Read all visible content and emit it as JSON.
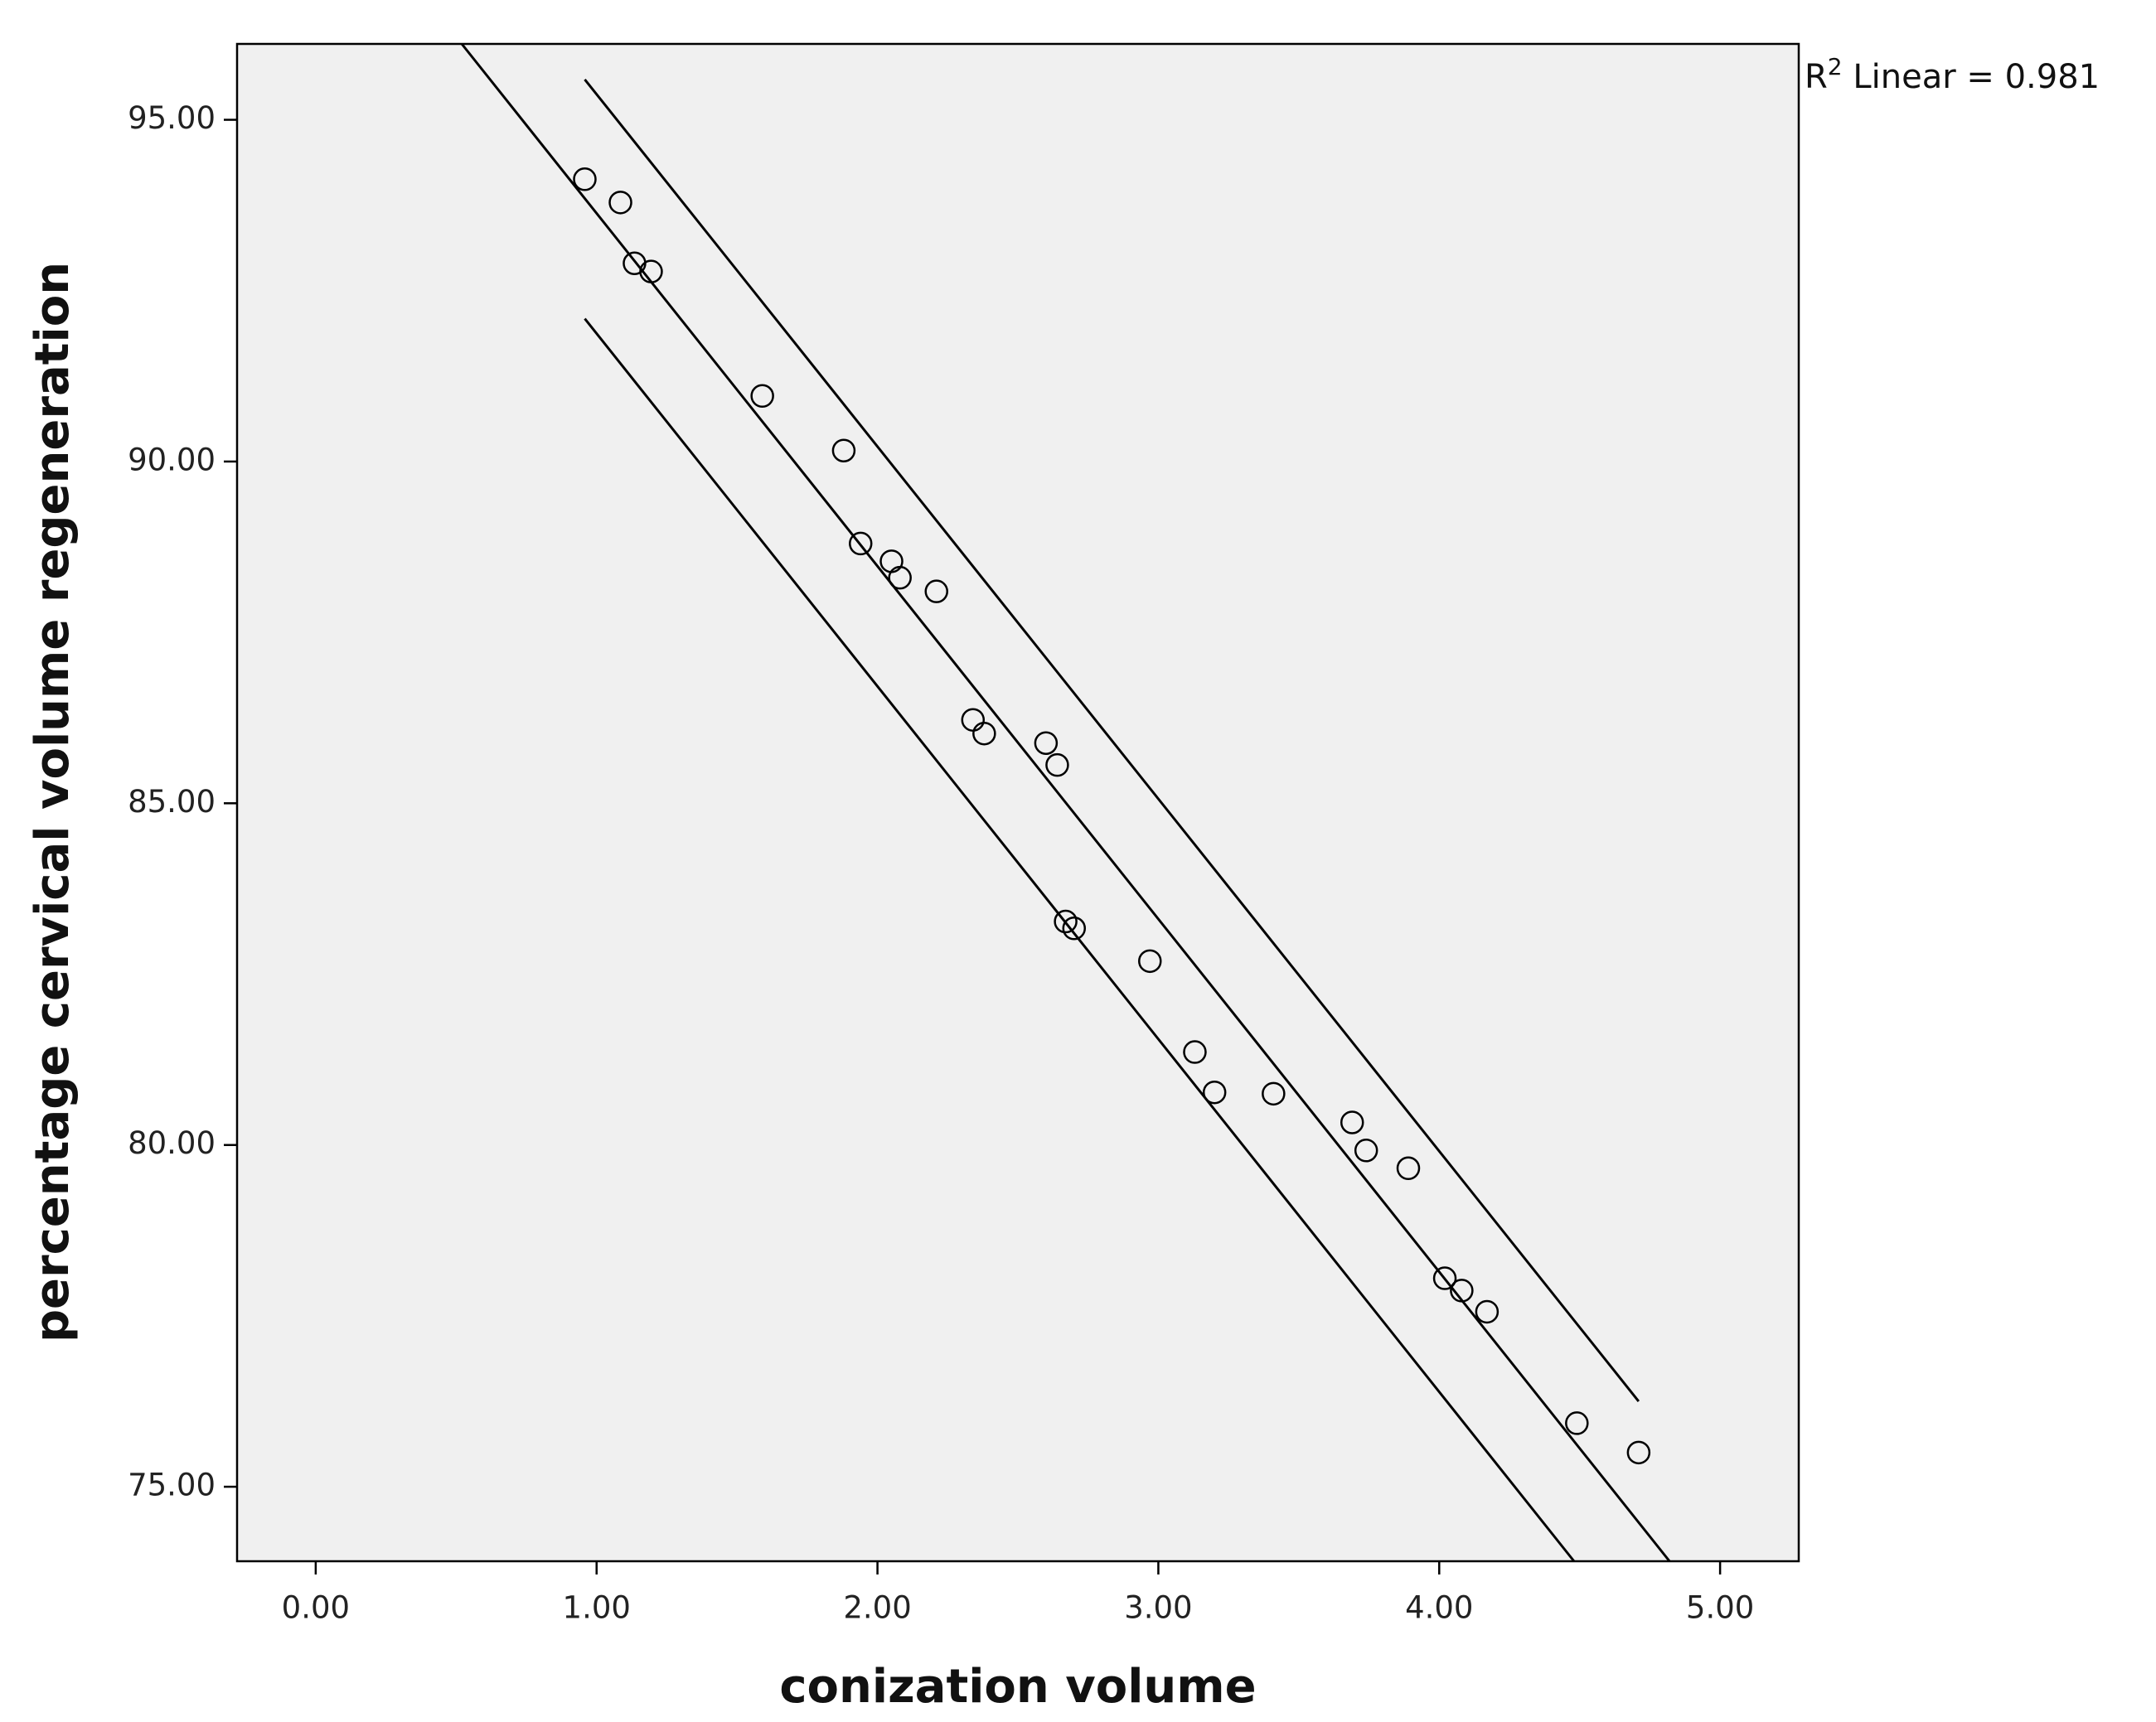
{
  "chart_data": {
    "type": "scatter",
    "xlabel": "conization volume",
    "ylabel": "percentage cervical volume regeneration",
    "annotation": {
      "base": "R",
      "sup": "2",
      "text": " Linear = 0.981"
    },
    "xlim": [
      -0.28,
      5.28
    ],
    "ylim": [
      73.91,
      96.11
    ],
    "xticks": [
      {
        "value": 0,
        "label": "0.00"
      },
      {
        "value": 1,
        "label": "1.00"
      },
      {
        "value": 2,
        "label": "2.00"
      },
      {
        "value": 3,
        "label": "3.00"
      },
      {
        "value": 4,
        "label": "4.00"
      },
      {
        "value": 5,
        "label": "5.00"
      }
    ],
    "yticks": [
      {
        "value": 75,
        "label": "75.00"
      },
      {
        "value": 80,
        "label": "80.00"
      },
      {
        "value": 85,
        "label": "85.00"
      },
      {
        "value": 90,
        "label": "90.00"
      },
      {
        "value": 95,
        "label": "95.00"
      }
    ],
    "color": "#000000",
    "background": "#f0f0f0",
    "x": [
      0.958,
      1.085,
      1.135,
      1.194,
      1.59,
      1.88,
      1.94,
      2.05,
      2.08,
      2.21,
      2.34,
      2.38,
      2.6,
      2.64,
      2.67,
      2.7,
      2.97,
      3.13,
      3.2,
      3.41,
      3.69,
      3.74,
      3.89,
      4.02,
      4.08,
      4.17,
      4.49,
      4.71
    ],
    "y": [
      94.13,
      93.79,
      92.9,
      92.78,
      90.96,
      90.16,
      88.8,
      88.54,
      88.3,
      88.1,
      86.22,
      86.02,
      85.88,
      85.56,
      83.27,
      83.17,
      82.69,
      81.36,
      80.77,
      80.75,
      80.33,
      79.92,
      79.66,
      78.05,
      77.87,
      77.56,
      75.93,
      75.5
    ],
    "lines": [
      {
        "type": "line",
        "x": [
          0.52,
          4.82
        ],
        "y": [
          96.11,
          73.91
        ]
      },
      {
        "type": "line",
        "x": [
          0.958,
          4.71
        ],
        "y": [
          95.59,
          76.25
        ]
      },
      {
        "type": "line",
        "x": [
          0.958,
          4.48
        ],
        "y": [
          92.09,
          73.91
        ]
      }
    ]
  }
}
